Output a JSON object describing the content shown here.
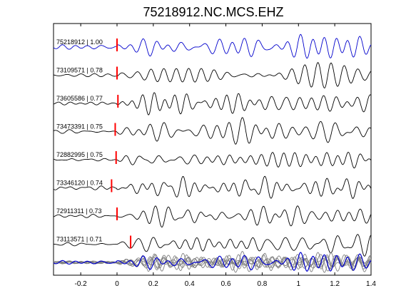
{
  "chart_data": {
    "type": "line",
    "title": "75218912.NC.MCS.EHZ",
    "xlabel": "",
    "ylabel": "",
    "xlim": [
      -0.35,
      1.4
    ],
    "x_ticks": [
      -0.2,
      0,
      0.2,
      0.4,
      0.6,
      0.8,
      1,
      1.2,
      1.4
    ],
    "x_tick_labels": [
      "-0.2",
      "0",
      "0.2",
      "0.4",
      "0.6",
      "0.8",
      "1",
      "1.2",
      "1.4"
    ],
    "grid": false,
    "colors": {
      "reference": "#0000cc",
      "trace": "#000000",
      "overlay": "#808080",
      "pick": "#ff0000"
    },
    "traces": [
      {
        "label": "75218912 | 1.00",
        "pick_time": 0.0,
        "seed": 1,
        "reference": true
      },
      {
        "label": "73109571 | 0.78",
        "pick_time": 0.0,
        "seed": 2
      },
      {
        "label": "73605586 | 0.77",
        "pick_time": 0.005,
        "seed": 3
      },
      {
        "label": "73473391 | 0.75",
        "pick_time": -0.01,
        "seed": 4
      },
      {
        "label": "72882995 | 0.75",
        "pick_time": -0.005,
        "seed": 5
      },
      {
        "label": "73346120 | 0.74",
        "pick_time": -0.03,
        "seed": 6
      },
      {
        "label": "72911311 | 0.73",
        "pick_time": 0.0,
        "seed": 7
      },
      {
        "label": "73113571 | 0.71",
        "pick_time": 0.075,
        "seed": 8
      }
    ]
  }
}
